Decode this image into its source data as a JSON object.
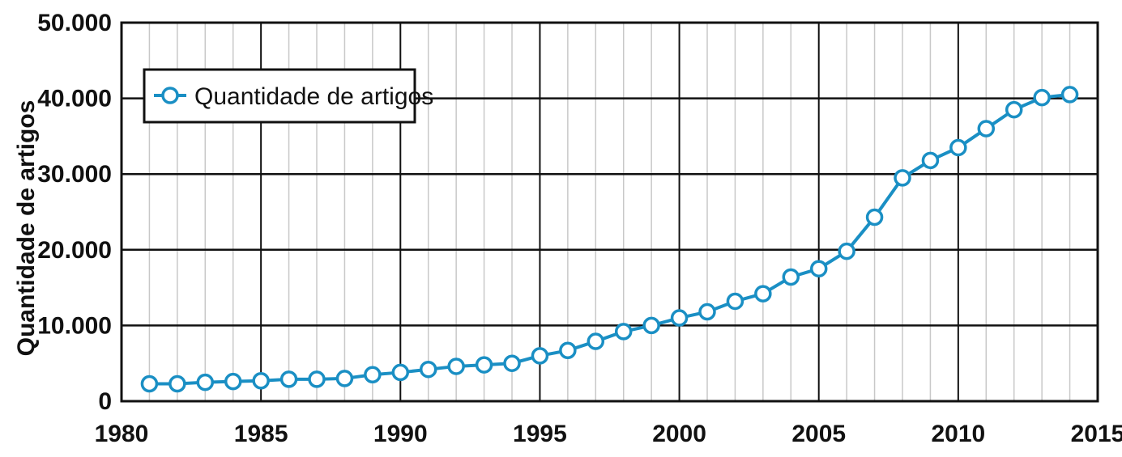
{
  "chart_data": {
    "type": "line",
    "title": "",
    "xlabel": "",
    "ylabel": "Quantidade de artigos",
    "xlim": [
      1980,
      2015
    ],
    "ylim": [
      0,
      50000
    ],
    "x_ticks": [
      1980,
      1985,
      1990,
      1995,
      2000,
      2005,
      2010,
      2015
    ],
    "x_tick_labels": [
      "1980",
      "1985",
      "1990",
      "1995",
      "2000",
      "2005",
      "2010",
      "2015"
    ],
    "y_ticks": [
      0,
      10000,
      20000,
      30000,
      40000,
      50000
    ],
    "y_tick_labels": [
      "0",
      "10.000",
      "20.000",
      "30.000",
      "40.000",
      "50.000"
    ],
    "grid": true,
    "legend_position": "top-left",
    "series": [
      {
        "name": "Quantidade de artigos",
        "color": "#1a8fc4",
        "marker": "open-circle",
        "x": [
          1981,
          1982,
          1983,
          1984,
          1985,
          1986,
          1987,
          1988,
          1989,
          1990,
          1991,
          1992,
          1993,
          1994,
          1995,
          1996,
          1997,
          1998,
          1999,
          2000,
          2001,
          2002,
          2003,
          2004,
          2005,
          2006,
          2007,
          2008,
          2009,
          2010,
          2011,
          2012,
          2013,
          2014
        ],
        "values": [
          2300,
          2300,
          2500,
          2600,
          2700,
          2900,
          2900,
          3000,
          3500,
          3800,
          4200,
          4600,
          4800,
          5000,
          6000,
          6700,
          7900,
          9200,
          10000,
          11000,
          11800,
          13200,
          14200,
          16400,
          17500,
          19800,
          24300,
          29500,
          31800,
          33500,
          36000,
          38500,
          40100,
          40500
        ]
      }
    ]
  }
}
